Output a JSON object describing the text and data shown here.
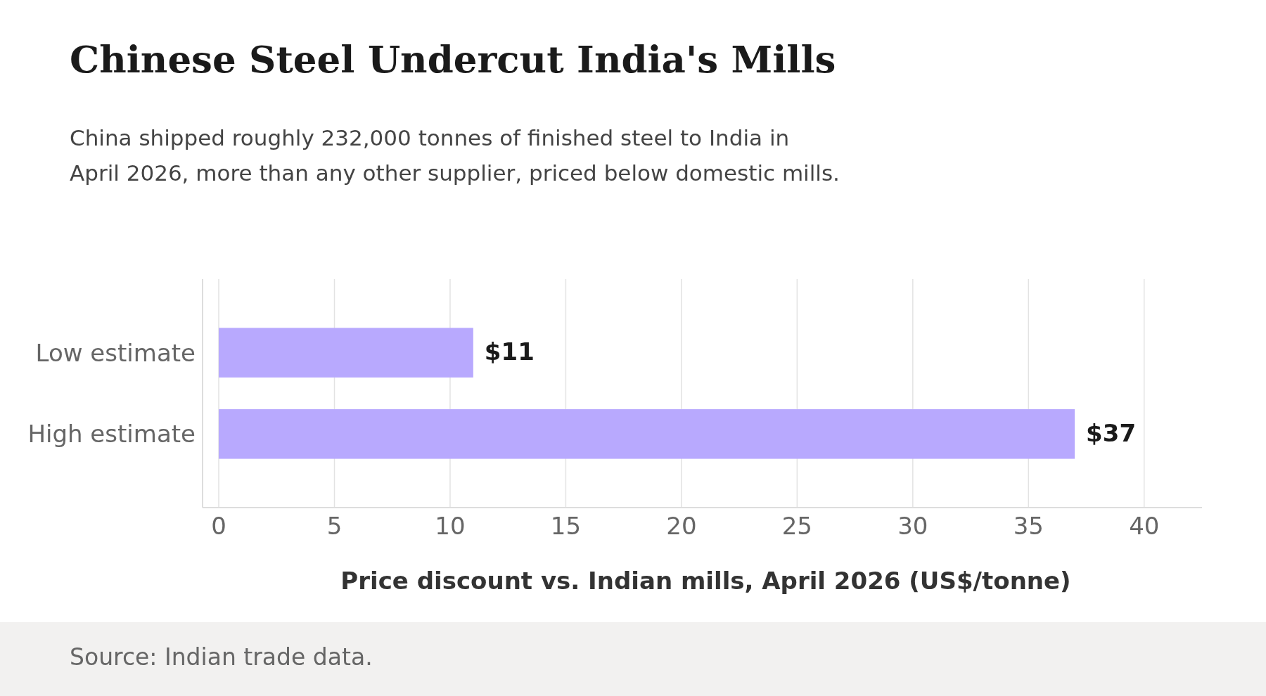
{
  "chart_data": {
    "type": "bar",
    "orientation": "horizontal",
    "title": "Chinese Steel Undercut India's Mills",
    "subtitle": "China shipped roughly 232,000 tonnes of finished steel to India in April 2026, more than any other supplier, priced below domestic mills.",
    "xlabel": "Price discount vs. Indian mills, April 2026 (US$/tonne)",
    "annotations": [
      "Source: Indian trade data."
    ],
    "categories": [
      "Low estimate",
      "High estimate"
    ],
    "values": [
      11,
      37
    ],
    "color": "#b8a9fe",
    "value_labels": [
      "$11",
      "$37"
    ],
    "xlim": [
      -0.7,
      42.5
    ],
    "xticks": [
      0,
      5,
      10,
      15,
      20,
      25,
      30,
      35,
      40
    ],
    "grid": "x"
  }
}
